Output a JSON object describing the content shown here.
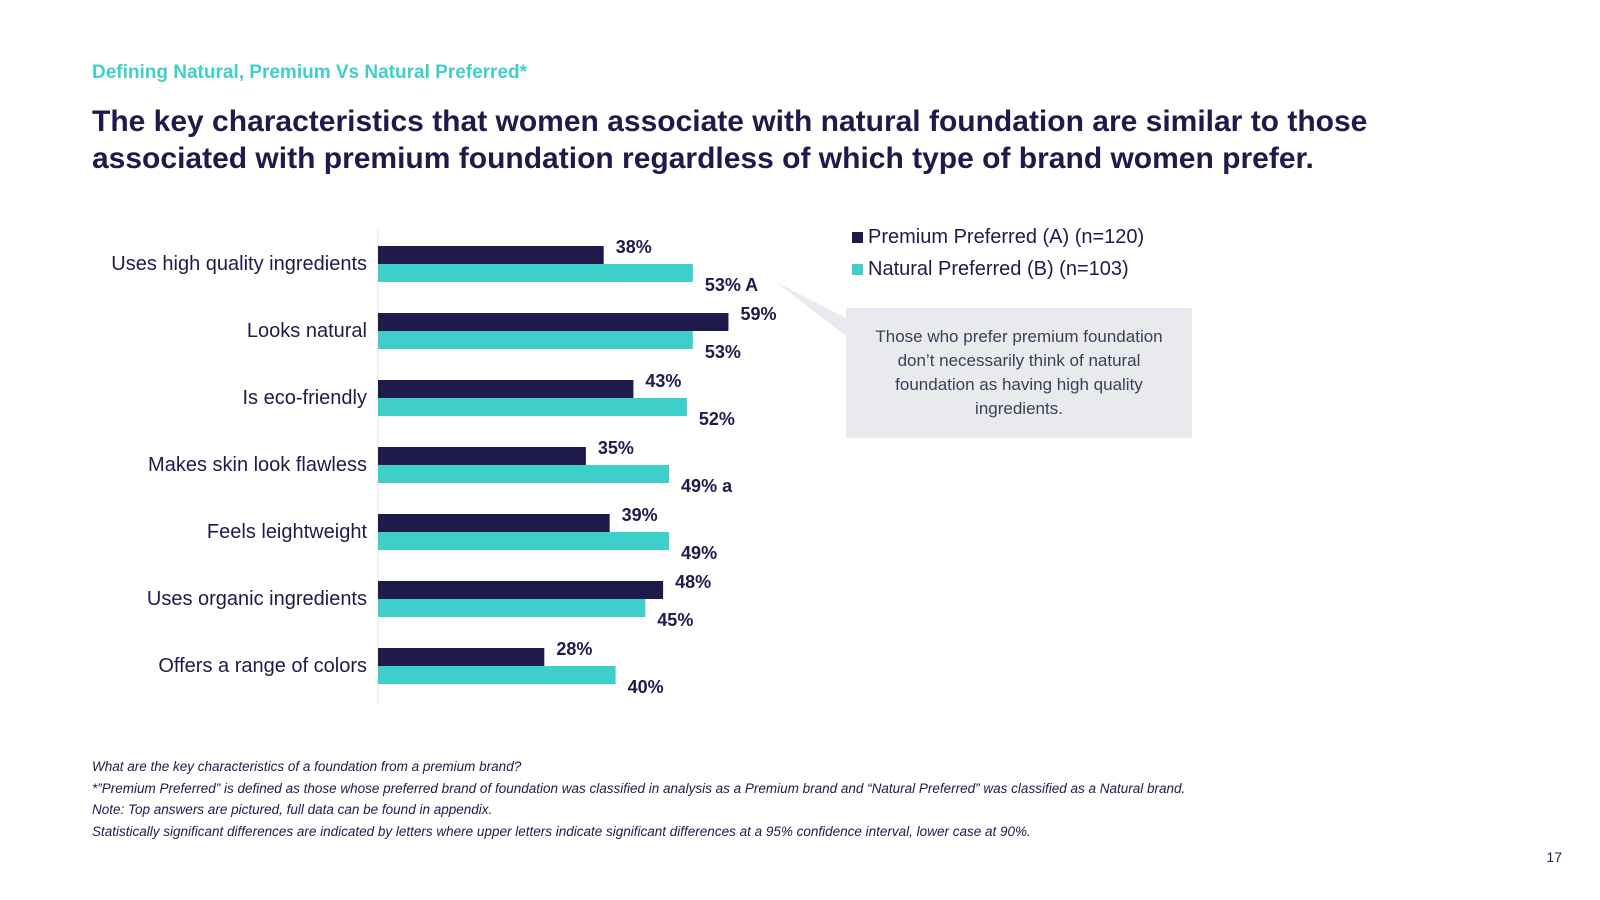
{
  "kicker": "Defining Natural, Premium Vs Natural Preferred*",
  "headline": "The key characteristics that women associate with natural foundation are similar to those associated with premium foundation regardless of which type of brand women prefer.",
  "callout": "Those who prefer premium foundation don’t necessarily think of natural foundation as having high quality ingredients.",
  "footnotes": [
    "What are the key characteristics of a foundation from a premium brand?",
    "*”Premium Preferred” is defined as those whose preferred brand of foundation was classified in analysis as a Premium brand and “Natural Preferred” was classified as a Natural brand.",
    "Note: Top answers are pictured, full data can be found in appendix.",
    "Statistically significant differences are indicated by letters where upper letters indicate significant differences at a 95% confidence interval, lower case at 90%."
  ],
  "page_number": "17",
  "colors": {
    "premium": "#1e1b4b",
    "natural": "#3ecfcb",
    "callout_bg": "#e8eaee"
  },
  "chart_data": {
    "type": "bar",
    "orientation": "horizontal",
    "title": "",
    "xlabel": "",
    "ylabel": "",
    "xlim": [
      0,
      100
    ],
    "grid": false,
    "legend_position": "top-right",
    "categories": [
      "Uses high quality ingredients",
      "Looks natural",
      "Is eco-friendly",
      "Makes skin look flawless",
      "Feels leightweight",
      "Uses organic ingredients",
      "Offers a range of colors"
    ],
    "series": [
      {
        "name": "Premium Preferred (A) (n=120)",
        "color": "#1e1b4b",
        "values": [
          38,
          59,
          43,
          35,
          39,
          48,
          28
        ],
        "labels": [
          "38%",
          "59%",
          "43%",
          "35%",
          "39%",
          "48%",
          "28%"
        ]
      },
      {
        "name": "Natural Preferred (B) (n=103)",
        "color": "#3ecfcb",
        "values": [
          53,
          53,
          52,
          49,
          49,
          45,
          40
        ],
        "labels": [
          "53% A",
          "53%",
          "52%",
          "49% a",
          "49%",
          "45%",
          "40%"
        ]
      }
    ]
  }
}
